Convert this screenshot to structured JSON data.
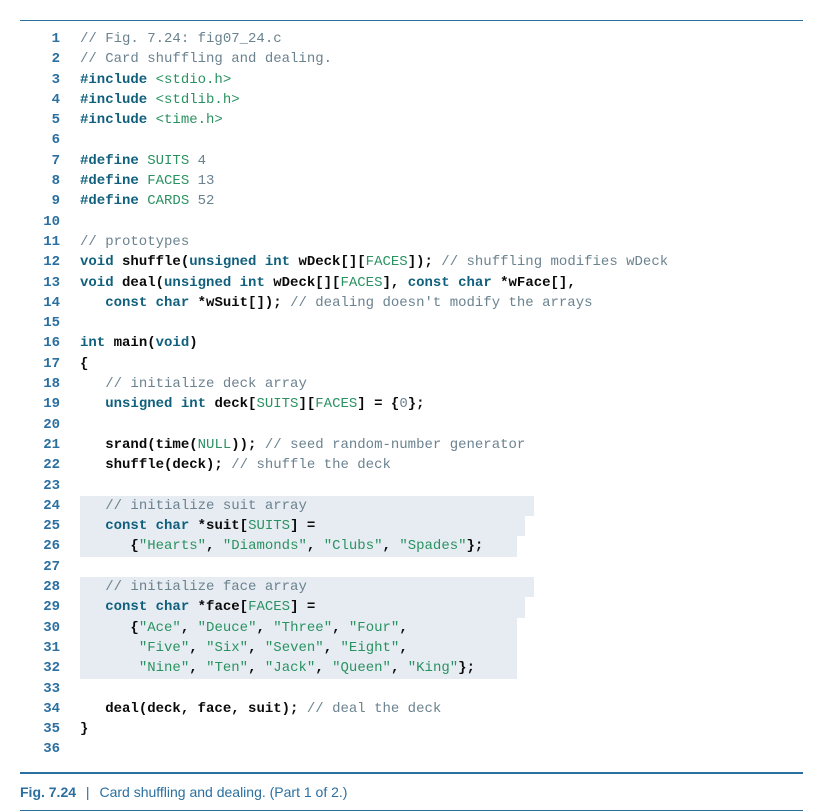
{
  "caption": {
    "label": "Fig. 7.24",
    "separator": "|",
    "description": "Card shuffling and dealing. (Part 1 of 2.)"
  },
  "colors": {
    "rule": "#2a6fa0",
    "line_number": "#2a6fa0",
    "comment": "#6b828f",
    "keyword": "#10607d",
    "macro": "#2a9261",
    "string": "#2a9261",
    "highlight_bg": "#e6ecf2",
    "background": "#ffffff"
  },
  "typography": {
    "code_font": "Consolas / Courier New",
    "code_size_pt": 11,
    "caption_font": "Segoe UI / Helvetica",
    "caption_size_pt": 11
  },
  "lines": [
    {
      "n": "1",
      "hl": false,
      "segs": [
        {
          "c": "cm",
          "t": "// Fig. 7.24: fig07_24.c"
        }
      ]
    },
    {
      "n": "2",
      "hl": false,
      "segs": [
        {
          "c": "cm",
          "t": "// Card shuffling and dealing."
        }
      ]
    },
    {
      "n": "3",
      "hl": false,
      "segs": [
        {
          "c": "kw",
          "t": "#include "
        },
        {
          "c": "st",
          "t": "<stdio.h>"
        }
      ]
    },
    {
      "n": "4",
      "hl": false,
      "segs": [
        {
          "c": "kw",
          "t": "#include "
        },
        {
          "c": "st",
          "t": "<stdlib.h>"
        }
      ]
    },
    {
      "n": "5",
      "hl": false,
      "segs": [
        {
          "c": "kw",
          "t": "#include "
        },
        {
          "c": "st",
          "t": "<time.h>"
        }
      ]
    },
    {
      "n": "6",
      "hl": false,
      "segs": [
        {
          "c": "",
          "t": ""
        }
      ]
    },
    {
      "n": "7",
      "hl": false,
      "segs": [
        {
          "c": "kw",
          "t": "#define "
        },
        {
          "c": "mc",
          "t": "SUITS "
        },
        {
          "c": "nm",
          "t": "4"
        }
      ]
    },
    {
      "n": "8",
      "hl": false,
      "segs": [
        {
          "c": "kw",
          "t": "#define "
        },
        {
          "c": "mc",
          "t": "FACES "
        },
        {
          "c": "nm",
          "t": "13"
        }
      ]
    },
    {
      "n": "9",
      "hl": false,
      "segs": [
        {
          "c": "kw",
          "t": "#define "
        },
        {
          "c": "mc",
          "t": "CARDS "
        },
        {
          "c": "nm",
          "t": "52"
        }
      ]
    },
    {
      "n": "10",
      "hl": false,
      "segs": [
        {
          "c": "",
          "t": ""
        }
      ]
    },
    {
      "n": "11",
      "hl": false,
      "segs": [
        {
          "c": "cm",
          "t": "// prototypes"
        }
      ]
    },
    {
      "n": "12",
      "hl": false,
      "segs": [
        {
          "c": "kw",
          "t": "void "
        },
        {
          "c": "id",
          "t": "shuffle("
        },
        {
          "c": "kw",
          "t": "unsigned int "
        },
        {
          "c": "id",
          "t": "wDeck[]["
        },
        {
          "c": "mc",
          "t": "FACES"
        },
        {
          "c": "id",
          "t": "]); "
        },
        {
          "c": "cm",
          "t": "// shuffling modifies wDeck"
        }
      ]
    },
    {
      "n": "13",
      "hl": false,
      "segs": [
        {
          "c": "kw",
          "t": "void "
        },
        {
          "c": "id",
          "t": "deal("
        },
        {
          "c": "kw",
          "t": "unsigned int "
        },
        {
          "c": "id",
          "t": "wDeck[]["
        },
        {
          "c": "mc",
          "t": "FACES"
        },
        {
          "c": "id",
          "t": "], "
        },
        {
          "c": "kw",
          "t": "const char "
        },
        {
          "c": "id",
          "t": "*wFace[],"
        }
      ]
    },
    {
      "n": "14",
      "hl": false,
      "segs": [
        {
          "c": "",
          "t": "   "
        },
        {
          "c": "kw",
          "t": "const char "
        },
        {
          "c": "id",
          "t": "*wSuit[]); "
        },
        {
          "c": "cm",
          "t": "// dealing doesn't modify the arrays"
        }
      ]
    },
    {
      "n": "15",
      "hl": false,
      "segs": [
        {
          "c": "",
          "t": ""
        }
      ]
    },
    {
      "n": "16",
      "hl": false,
      "segs": [
        {
          "c": "kw",
          "t": "int "
        },
        {
          "c": "id",
          "t": "main("
        },
        {
          "c": "kw",
          "t": "void"
        },
        {
          "c": "id",
          "t": ")"
        }
      ]
    },
    {
      "n": "17",
      "hl": false,
      "segs": [
        {
          "c": "id",
          "t": "{"
        }
      ]
    },
    {
      "n": "18",
      "hl": false,
      "segs": [
        {
          "c": "",
          "t": "   "
        },
        {
          "c": "cm",
          "t": "// initialize deck array"
        }
      ]
    },
    {
      "n": "19",
      "hl": false,
      "segs": [
        {
          "c": "",
          "t": "   "
        },
        {
          "c": "kw",
          "t": "unsigned int "
        },
        {
          "c": "id",
          "t": "deck["
        },
        {
          "c": "mc",
          "t": "SUITS"
        },
        {
          "c": "id",
          "t": "]["
        },
        {
          "c": "mc",
          "t": "FACES"
        },
        {
          "c": "id",
          "t": "] = {"
        },
        {
          "c": "nm",
          "t": "0"
        },
        {
          "c": "id",
          "t": "};"
        }
      ]
    },
    {
      "n": "20",
      "hl": false,
      "segs": [
        {
          "c": "",
          "t": ""
        }
      ]
    },
    {
      "n": "21",
      "hl": false,
      "segs": [
        {
          "c": "",
          "t": "   "
        },
        {
          "c": "id",
          "t": "srand(time("
        },
        {
          "c": "mc",
          "t": "NULL"
        },
        {
          "c": "id",
          "t": ")); "
        },
        {
          "c": "cm",
          "t": "// seed random-number generator"
        }
      ]
    },
    {
      "n": "22",
      "hl": false,
      "segs": [
        {
          "c": "",
          "t": "   "
        },
        {
          "c": "id",
          "t": "shuffle(deck); "
        },
        {
          "c": "cm",
          "t": "// shuffle the deck"
        }
      ]
    },
    {
      "n": "23",
      "hl": false,
      "segs": [
        {
          "c": "",
          "t": ""
        }
      ]
    },
    {
      "n": "24",
      "hl": true,
      "segs": [
        {
          "c": "",
          "t": "   "
        },
        {
          "c": "cm",
          "t": "// initialize suit array                           "
        }
      ]
    },
    {
      "n": "25",
      "hl": true,
      "segs": [
        {
          "c": "",
          "t": "   "
        },
        {
          "c": "kw",
          "t": "const char "
        },
        {
          "c": "id",
          "t": "*suit["
        },
        {
          "c": "mc",
          "t": "SUITS"
        },
        {
          "c": "id",
          "t": "] =                         "
        }
      ]
    },
    {
      "n": "26",
      "hl": true,
      "segs": [
        {
          "c": "",
          "t": "   "
        },
        {
          "c": "id",
          "t": "   {"
        },
        {
          "c": "st",
          "t": "\"Hearts\""
        },
        {
          "c": "id",
          "t": ", "
        },
        {
          "c": "st",
          "t": "\"Diamonds\""
        },
        {
          "c": "id",
          "t": ", "
        },
        {
          "c": "st",
          "t": "\"Clubs\""
        },
        {
          "c": "id",
          "t": ", "
        },
        {
          "c": "st",
          "t": "\"Spades\""
        },
        {
          "c": "id",
          "t": "};    "
        }
      ]
    },
    {
      "n": "27",
      "hl": false,
      "segs": [
        {
          "c": "",
          "t": ""
        }
      ]
    },
    {
      "n": "28",
      "hl": true,
      "segs": [
        {
          "c": "",
          "t": "   "
        },
        {
          "c": "cm",
          "t": "// initialize face array                           "
        }
      ]
    },
    {
      "n": "29",
      "hl": true,
      "segs": [
        {
          "c": "",
          "t": "   "
        },
        {
          "c": "kw",
          "t": "const char "
        },
        {
          "c": "id",
          "t": "*face["
        },
        {
          "c": "mc",
          "t": "FACES"
        },
        {
          "c": "id",
          "t": "] =                         "
        }
      ]
    },
    {
      "n": "30",
      "hl": true,
      "segs": [
        {
          "c": "",
          "t": "   "
        },
        {
          "c": "id",
          "t": "   {"
        },
        {
          "c": "st",
          "t": "\"Ace\""
        },
        {
          "c": "id",
          "t": ", "
        },
        {
          "c": "st",
          "t": "\"Deuce\""
        },
        {
          "c": "id",
          "t": ", "
        },
        {
          "c": "st",
          "t": "\"Three\""
        },
        {
          "c": "id",
          "t": ", "
        },
        {
          "c": "st",
          "t": "\"Four\""
        },
        {
          "c": "id",
          "t": ",             "
        }
      ]
    },
    {
      "n": "31",
      "hl": true,
      "segs": [
        {
          "c": "",
          "t": "   "
        },
        {
          "c": "id",
          "t": "    "
        },
        {
          "c": "st",
          "t": "\"Five\""
        },
        {
          "c": "id",
          "t": ", "
        },
        {
          "c": "st",
          "t": "\"Six\""
        },
        {
          "c": "id",
          "t": ", "
        },
        {
          "c": "st",
          "t": "\"Seven\""
        },
        {
          "c": "id",
          "t": ", "
        },
        {
          "c": "st",
          "t": "\"Eight\""
        },
        {
          "c": "id",
          "t": ",             "
        }
      ]
    },
    {
      "n": "32",
      "hl": true,
      "segs": [
        {
          "c": "",
          "t": "   "
        },
        {
          "c": "id",
          "t": "    "
        },
        {
          "c": "st",
          "t": "\"Nine\""
        },
        {
          "c": "id",
          "t": ", "
        },
        {
          "c": "st",
          "t": "\"Ten\""
        },
        {
          "c": "id",
          "t": ", "
        },
        {
          "c": "st",
          "t": "\"Jack\""
        },
        {
          "c": "id",
          "t": ", "
        },
        {
          "c": "st",
          "t": "\"Queen\""
        },
        {
          "c": "id",
          "t": ", "
        },
        {
          "c": "st",
          "t": "\"King\""
        },
        {
          "c": "id",
          "t": "};     "
        }
      ]
    },
    {
      "n": "33",
      "hl": false,
      "segs": [
        {
          "c": "",
          "t": ""
        }
      ]
    },
    {
      "n": "34",
      "hl": false,
      "segs": [
        {
          "c": "",
          "t": "   "
        },
        {
          "c": "id",
          "t": "deal(deck, face, suit); "
        },
        {
          "c": "cm",
          "t": "// deal the deck"
        }
      ]
    },
    {
      "n": "35",
      "hl": false,
      "segs": [
        {
          "c": "id",
          "t": "}"
        }
      ]
    },
    {
      "n": "36",
      "hl": false,
      "segs": [
        {
          "c": "",
          "t": ""
        }
      ]
    }
  ]
}
